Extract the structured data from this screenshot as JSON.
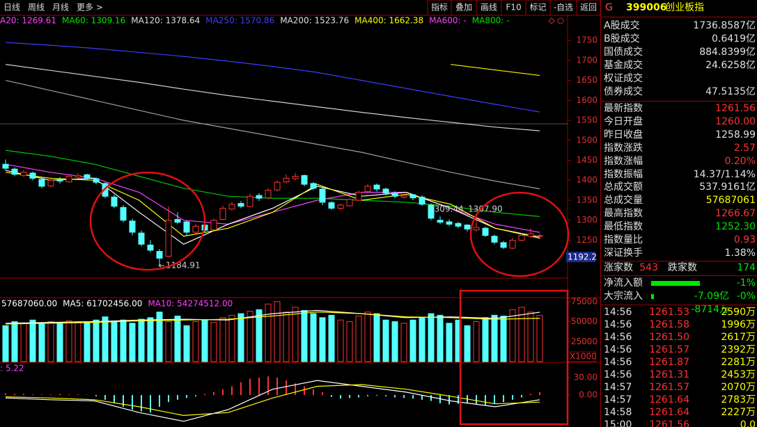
{
  "toolbar": {
    "periods": [
      "日线",
      "周线",
      "月线",
      "更多 >"
    ],
    "buttons": [
      "指标",
      "叠加",
      "画线",
      "F10",
      "标记",
      "-自选",
      "返回"
    ]
  },
  "chart_data": [
    {
      "type": "candlestick",
      "legend": [
        {
          "text": "A20: 1269.61",
          "color": "#ff40ff"
        },
        {
          "text": "MA60: 1309.16",
          "color": "#00e600"
        },
        {
          "text": "MA120: 1378.64",
          "color": "#e0e0e0"
        },
        {
          "text": "MA250: 1570.86",
          "color": "#3c3cff"
        },
        {
          "text": "MA200: 1523.76",
          "color": "#e0e0e0"
        },
        {
          "text": "MA400: 1662.38",
          "color": "#ffff00"
        },
        {
          "text": "MA600: -",
          "color": "#ff40ff"
        },
        {
          "text": "MA800: -",
          "color": "#00e600"
        }
      ],
      "up_color": "#ff3232",
      "down_color": "#54ffff",
      "candles": [
        [
          1440,
          1452,
          1425,
          1430
        ],
        [
          1428,
          1432,
          1410,
          1415
        ],
        [
          1412,
          1426,
          1408,
          1420
        ],
        [
          1418,
          1422,
          1400,
          1405
        ],
        [
          1402,
          1408,
          1380,
          1385
        ],
        [
          1386,
          1405,
          1383,
          1400
        ],
        [
          1402,
          1408,
          1392,
          1398
        ],
        [
          1396,
          1414,
          1394,
          1410
        ],
        [
          1408,
          1418,
          1404,
          1412
        ],
        [
          1414,
          1416,
          1400,
          1405
        ],
        [
          1404,
          1408,
          1390,
          1395
        ],
        [
          1392,
          1395,
          1355,
          1360
        ],
        [
          1358,
          1364,
          1330,
          1335
        ],
        [
          1332,
          1338,
          1295,
          1300
        ],
        [
          1298,
          1304,
          1262,
          1270
        ],
        [
          1268,
          1274,
          1235,
          1240
        ],
        [
          1238,
          1250,
          1220,
          1225
        ],
        [
          1222,
          1228,
          1184.91,
          1205
        ],
        [
          1210,
          1335,
          1208,
          1300
        ],
        [
          1302,
          1320,
          1290,
          1295
        ],
        [
          1296,
          1300,
          1262,
          1270
        ],
        [
          1270,
          1290,
          1266,
          1285
        ],
        [
          1288,
          1292,
          1270,
          1275
        ],
        [
          1276,
          1304,
          1274,
          1300
        ],
        [
          1302,
          1336,
          1300,
          1330
        ],
        [
          1328,
          1346,
          1324,
          1340
        ],
        [
          1342,
          1348,
          1330,
          1335
        ],
        [
          1334,
          1366,
          1332,
          1360
        ],
        [
          1362,
          1368,
          1348,
          1355
        ],
        [
          1356,
          1380,
          1352,
          1375
        ],
        [
          1376,
          1400,
          1372,
          1395
        ],
        [
          1396,
          1415,
          1392,
          1405
        ],
        [
          1404,
          1418,
          1400,
          1410
        ],
        [
          1412,
          1414,
          1385,
          1390
        ],
        [
          1392,
          1396,
          1375,
          1380
        ],
        [
          1378,
          1382,
          1338,
          1345
        ],
        [
          1344,
          1348,
          1326,
          1330
        ],
        [
          1330,
          1342,
          1326,
          1338
        ],
        [
          1336,
          1356,
          1334,
          1352
        ],
        [
          1350,
          1374,
          1348,
          1370
        ],
        [
          1372,
          1390,
          1368,
          1385
        ],
        [
          1388,
          1392,
          1372,
          1378
        ],
        [
          1378,
          1382,
          1362,
          1368
        ],
        [
          1368,
          1372,
          1355,
          1360
        ],
        [
          1358,
          1366,
          1354,
          1362
        ],
        [
          1364,
          1366,
          1350,
          1356
        ],
        [
          1358,
          1362,
          1336,
          1340
        ],
        [
          1338,
          1342,
          1300,
          1305
        ],
        [
          1300,
          1309.44,
          1290,
          1295
        ],
        [
          1296,
          1302,
          1285,
          1290
        ],
        [
          1292,
          1296,
          1280,
          1285
        ],
        [
          1288,
          1290,
          1272,
          1278
        ],
        [
          1276,
          1307.9,
          1272,
          1282
        ],
        [
          1280,
          1284,
          1258,
          1262
        ],
        [
          1260,
          1264,
          1240,
          1245
        ],
        [
          1244,
          1248,
          1228,
          1232
        ],
        [
          1230,
          1256,
          1228,
          1250
        ],
        [
          1250,
          1268,
          1248,
          1262
        ],
        [
          1260,
          1280,
          1256,
          1266
        ],
        [
          1260,
          1266.67,
          1252.3,
          1261.56
        ]
      ],
      "ma_lines": [
        {
          "color": "#3c3cff",
          "values": [
            1745,
            1738,
            1730,
            1720,
            1710,
            1698,
            1685,
            1670,
            1650,
            1630,
            1610,
            1590,
            1570.86
          ]
        },
        {
          "color": "#d0d0d0",
          "values": [
            1690,
            1675,
            1660,
            1645,
            1628,
            1612,
            1598,
            1584,
            1570,
            1557,
            1545,
            1533,
            1523.76
          ]
        },
        {
          "color": "#a0a0a0",
          "values": [
            1650,
            1625,
            1600,
            1575,
            1550,
            1530,
            1510,
            1490,
            1470,
            1445,
            1420,
            1398,
            1378.64
          ]
        },
        {
          "color": "#00c800",
          "values": [
            1475,
            1460,
            1440,
            1410,
            1380,
            1360,
            1355,
            1355,
            1350,
            1345,
            1335,
            1320,
            1309.16
          ]
        },
        {
          "color": "#e0e000",
          "values": [
            null,
            null,
            null,
            null,
            null,
            null,
            null,
            null,
            null,
            null,
            1690,
            1676,
            1662.38
          ]
        },
        {
          "color": "#ff40ff",
          "values": [
            1440,
            1420,
            1405,
            1370,
            1300,
            1290,
            1320,
            1350,
            1370,
            1370,
            1330,
            1290,
            1269.61
          ]
        },
        {
          "color": "#ffffff",
          "values": [
            1425,
            1400,
            1405,
            1320,
            1240,
            1290,
            1330,
            1385,
            1360,
            1370,
            1330,
            1280,
            1258
          ]
        },
        {
          "color": "#ffff00",
          "values": [
            1420,
            1405,
            1400,
            1350,
            1260,
            1280,
            1320,
            1390,
            1350,
            1365,
            1340,
            1280,
            1255
          ]
        }
      ],
      "annotations": [
        "1184.91",
        "1309.44",
        "1307.90"
      ],
      "cursor_label": "1192.2",
      "ylim": [
        1155,
        1785
      ],
      "yticks": [
        1750,
        1700,
        1650,
        1600,
        1550,
        1500,
        1450,
        1400,
        1350,
        1300,
        1250
      ]
    },
    {
      "type": "bar",
      "header": "57687060.00",
      "legend": [
        {
          "text": "MA5: 61702456.00",
          "color": "#ffffff"
        },
        {
          "text": "MA10: 54274512.00",
          "color": "#ff40ff"
        }
      ],
      "values": [
        45000,
        50000,
        48000,
        52000,
        47000,
        50000,
        48000,
        51000,
        50000,
        49000,
        52000,
        56000,
        50000,
        52000,
        48000,
        53000,
        55000,
        62000,
        50000,
        57000,
        45000,
        50000,
        52000,
        49000,
        55000,
        58000,
        60000,
        63000,
        65000,
        72000,
        75000,
        62000,
        68000,
        64000,
        60000,
        55000,
        58000,
        52000,
        50000,
        57000,
        62000,
        60000,
        52000,
        50000,
        48000,
        52000,
        55000,
        60000,
        58000,
        48000,
        52000,
        45000,
        50000,
        55000,
        58000,
        57000,
        65000,
        68000,
        62000,
        57687.06
      ],
      "ma_lines": [
        {
          "color": "#ffffff",
          "values": [
            48000,
            49000,
            50000,
            52000,
            53000,
            52000,
            60000,
            64000,
            60000,
            55000,
            56000,
            54000,
            61702.456
          ]
        },
        {
          "color": "#ffff00",
          "values": [
            47000,
            48000,
            49000,
            51000,
            52000,
            53000,
            57000,
            62000,
            60000,
            56000,
            55000,
            53000,
            54274.512
          ]
        }
      ],
      "unit_label": "X1000",
      "ylim": [
        0,
        80000
      ],
      "yticks": [
        75000,
        50000,
        25000
      ]
    },
    {
      "type": "macd",
      "legend": [
        {
          "text": ": 5.22",
          "color": "#ff40ff"
        }
      ],
      "values": [
        3,
        2,
        2,
        1,
        1,
        1,
        2,
        1,
        1,
        0.5,
        -2,
        -8,
        -14,
        -20,
        -25,
        -28,
        -30,
        -20,
        -12,
        -8,
        -5,
        -2,
        2,
        5,
        10,
        15,
        22,
        28,
        30,
        32,
        30,
        25,
        20,
        15,
        10,
        5,
        -3,
        -6,
        -5,
        -4,
        -2,
        -1,
        -2,
        -4,
        -5,
        -6,
        -8,
        -10,
        -14,
        -16,
        -15,
        -14,
        -16,
        -18,
        -15,
        -12,
        -8,
        -4,
        2,
        5.22
      ],
      "lines": [
        {
          "color": "#ffffff",
          "values": [
            -5,
            -8,
            -10,
            -30,
            -45,
            -25,
            10,
            25,
            15,
            5,
            -10,
            -20,
            -8
          ]
        },
        {
          "color": "#ffff00",
          "values": [
            -3,
            -5,
            -8,
            -20,
            -35,
            -30,
            -5,
            15,
            18,
            10,
            -2,
            -15,
            -12
          ]
        }
      ],
      "ylim": [
        -50,
        55
      ],
      "yticks": [
        {
          "value": 30,
          "label": "30.00"
        },
        {
          "value": 0,
          "label": "0.00"
        }
      ]
    }
  ],
  "panel": {
    "code_prefix": "G",
    "code": "399006",
    "name": "创业板指",
    "turnover": [
      {
        "label": "A股成交",
        "value": "1736.8587亿"
      },
      {
        "label": "B股成交",
        "value": "0.6419亿"
      },
      {
        "label": "国债成交",
        "value": "884.8399亿"
      },
      {
        "label": "基金成交",
        "value": "24.6258亿"
      },
      {
        "label": "权证成交"
      },
      {
        "label": "债券成交",
        "value": "47.5135亿"
      }
    ],
    "stats": [
      {
        "label": "最新指数",
        "value": "1261.56",
        "color": "#ff3232"
      },
      {
        "label": "今日开盘",
        "value": "1260.00",
        "color": "#ff3232"
      },
      {
        "label": "昨日收盘",
        "value": "1258.99",
        "color": "#e0e0e0"
      },
      {
        "label": "指数涨跌",
        "value": "2.57",
        "color": "#ff3232"
      },
      {
        "label": "指数涨幅",
        "value": "0.20%",
        "color": "#ff3232"
      },
      {
        "label": "指数振幅",
        "value": "14.37/1.14%",
        "color": "#e0e0e0"
      },
      {
        "label": "总成交额",
        "value": "537.9161亿",
        "color": "#e0e0e0"
      },
      {
        "label": "总成交量",
        "value": "57687061",
        "color": "#ffff00"
      },
      {
        "label": "最高指数",
        "value": "1266.67",
        "color": "#ff3232"
      },
      {
        "label": "最低指数",
        "value": "1252.30",
        "color": "#00e600"
      },
      {
        "label": "指数量比",
        "value": "0.93",
        "color": "#ff3232"
      },
      {
        "label": "深证换手",
        "value": "1.38%",
        "color": "#e0e0e0"
      }
    ],
    "breadth": {
      "up_label": "涨家数",
      "up": 543,
      "down_label": "跌家数",
      "down": 174
    },
    "flows": [
      {
        "label": "净流入额",
        "value": "-7.09亿",
        "pct": "-1%"
      },
      {
        "label": "大宗流入",
        "value": "-8714万",
        "pct": "-0%"
      }
    ],
    "ticks": [
      [
        "14:56",
        "1261.53",
        "2590万"
      ],
      [
        "14:56",
        "1261.58",
        "1996万"
      ],
      [
        "14:56",
        "1261.50",
        "2617万"
      ],
      [
        "14:56",
        "1261.57",
        "2392万"
      ],
      [
        "14:56",
        "1261.87",
        "2281万"
      ],
      [
        "14:56",
        "1261.31",
        "2453万"
      ],
      [
        "14:57",
        "1261.57",
        "2070万"
      ],
      [
        "14:57",
        "1261.64",
        "2783万"
      ],
      [
        "14:58",
        "1261.64",
        "2227万"
      ],
      [
        "15:00",
        "1261.56",
        "0.0"
      ]
    ]
  }
}
